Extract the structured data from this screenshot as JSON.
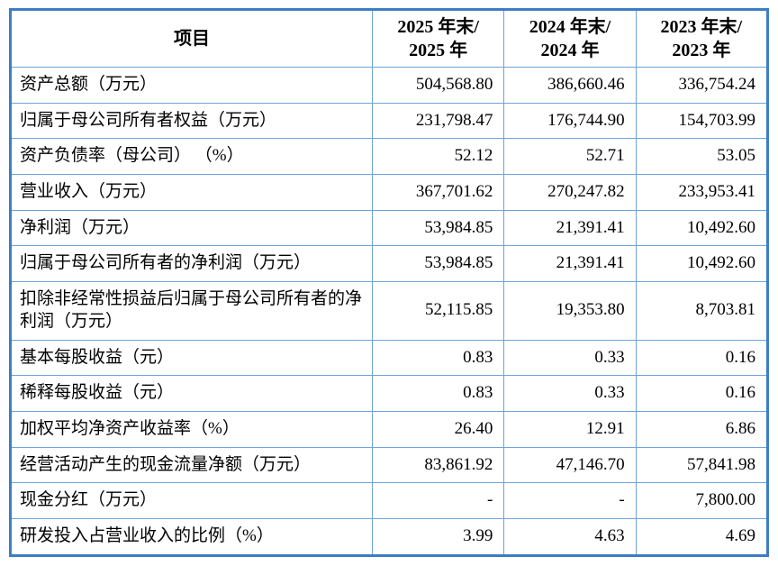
{
  "colors": {
    "outer_border": "#3d7dc2",
    "inner_border": "#6fa3d9",
    "text": "#000000",
    "background": "#ffffff"
  },
  "table": {
    "header": {
      "item_label": "项目",
      "columns": [
        "2025 年末/\n2025 年",
        "2024 年末/\n2024 年",
        "2023 年末/\n2023 年"
      ]
    },
    "rows": [
      {
        "label": "资产总额（万元）",
        "values": [
          "504,568.80",
          "386,660.46",
          "336,754.24"
        ]
      },
      {
        "label": "归属于母公司所有者权益（万元）",
        "values": [
          "231,798.47",
          "176,744.90",
          "154,703.99"
        ]
      },
      {
        "label": "资产负债率（母公司） （%）",
        "values": [
          "52.12",
          "52.71",
          "53.05"
        ]
      },
      {
        "label": "营业收入（万元）",
        "values": [
          "367,701.62",
          "270,247.82",
          "233,953.41"
        ]
      },
      {
        "label": "净利润（万元）",
        "values": [
          "53,984.85",
          "21,391.41",
          "10,492.60"
        ]
      },
      {
        "label": "归属于母公司所有者的净利润（万元）",
        "values": [
          "53,984.85",
          "21,391.41",
          "10,492.60"
        ]
      },
      {
        "label": "扣除非经常性损益后归属于母公司所有者的净利润（万元）",
        "values": [
          "52,115.85",
          "19,353.80",
          "8,703.81"
        ]
      },
      {
        "label": "基本每股收益（元）",
        "values": [
          "0.83",
          "0.33",
          "0.16"
        ]
      },
      {
        "label": "稀释每股收益（元）",
        "values": [
          "0.83",
          "0.33",
          "0.16"
        ]
      },
      {
        "label": "加权平均净资产收益率（%）",
        "values": [
          "26.40",
          "12.91",
          "6.86"
        ]
      },
      {
        "label": "经营活动产生的现金流量净额（万元）",
        "values": [
          "83,861.92",
          "47,146.70",
          "57,841.98"
        ]
      },
      {
        "label": "现金分红（万元）",
        "values": [
          "-",
          "-",
          "7,800.00"
        ]
      },
      {
        "label": "研发投入占营业收入的比例（%）",
        "values": [
          "3.99",
          "4.63",
          "4.69"
        ]
      }
    ]
  }
}
